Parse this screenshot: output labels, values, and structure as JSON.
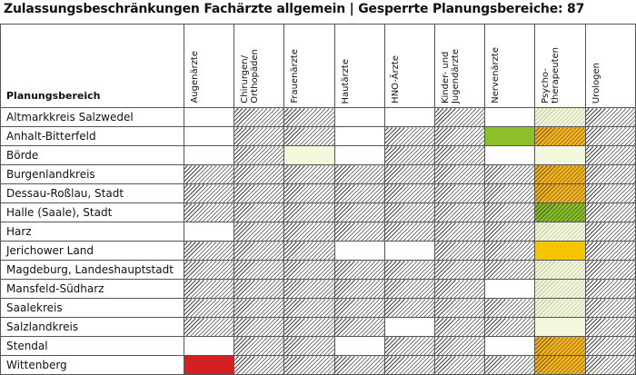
{
  "title": "Zulassungsbeschränkungen Fachärzte allgemein | Gesperrte Planungsbereiche: 87",
  "region_header": "Planungsbereich",
  "columns": [
    "Augenärzte",
    "Chirurgen/\nOrthopäden",
    "Frauenärzte",
    "Hautärzte",
    "HNO-Ärzte",
    "Kinder- und\nJugendärzte",
    "Nervenärzte",
    "Psycho-\ntherapeuten",
    "Urologen"
  ],
  "colors": {
    "hatch": "#444444",
    "green": "#8dbf2b",
    "orange": "#f5b51f",
    "yellow": "#f7c500",
    "red": "#d42020",
    "light": "#f3f7dc"
  },
  "rows": [
    {
      "region": "Altmarkkreis Salzwedel",
      "cells": [
        "",
        "hatch",
        "hatch",
        "",
        "",
        "hatch",
        "",
        "light hatch",
        "hatch"
      ]
    },
    {
      "region": "Anhalt-Bitterfeld",
      "cells": [
        "",
        "hatch",
        "hatch",
        "",
        "hatch",
        "hatch",
        "green",
        "orange hatch",
        "hatch"
      ]
    },
    {
      "region": "Börde",
      "cells": [
        "",
        "hatch",
        "light",
        "",
        "hatch",
        "hatch",
        "",
        "light",
        "hatch"
      ]
    },
    {
      "region": "Burgenlandkreis",
      "cells": [
        "hatch",
        "hatch",
        "hatch",
        "hatch",
        "hatch",
        "hatch",
        "hatch",
        "orange hatch",
        "hatch"
      ]
    },
    {
      "region": "Dessau-Roßlau, Stadt",
      "cells": [
        "hatch",
        "hatch",
        "hatch",
        "hatch",
        "hatch",
        "hatch",
        "hatch",
        "orange hatch",
        "hatch"
      ]
    },
    {
      "region": "Halle (Saale), Stadt",
      "cells": [
        "hatch",
        "hatch",
        "hatch",
        "hatch",
        "hatch",
        "hatch",
        "hatch",
        "green hatch",
        "hatch"
      ]
    },
    {
      "region": "Harz",
      "cells": [
        "",
        "hatch",
        "hatch",
        "hatch",
        "hatch",
        "hatch",
        "hatch",
        "light hatch",
        "hatch"
      ]
    },
    {
      "region": "Jerichower Land",
      "cells": [
        "hatch",
        "hatch",
        "hatch",
        "",
        "",
        "hatch",
        "hatch",
        "yellow",
        "hatch"
      ]
    },
    {
      "region": "Magdeburg, Landeshauptstadt",
      "cells": [
        "hatch",
        "hatch",
        "hatch",
        "hatch",
        "hatch",
        "hatch",
        "hatch",
        "light hatch",
        "hatch"
      ]
    },
    {
      "region": "Mansfeld-Südharz",
      "cells": [
        "hatch",
        "hatch",
        "hatch",
        "hatch",
        "hatch",
        "hatch",
        "",
        "light hatch",
        "hatch"
      ]
    },
    {
      "region": "Saalekreis",
      "cells": [
        "hatch",
        "hatch",
        "hatch",
        "hatch",
        "hatch",
        "hatch",
        "hatch",
        "light hatch",
        "hatch"
      ]
    },
    {
      "region": "Salzlandkreis",
      "cells": [
        "hatch",
        "hatch",
        "hatch",
        "hatch",
        "",
        "hatch",
        "hatch",
        "light",
        "hatch"
      ]
    },
    {
      "region": "Stendal",
      "cells": [
        "",
        "hatch",
        "hatch",
        "",
        "hatch",
        "hatch",
        "",
        "orange hatch",
        "hatch"
      ]
    },
    {
      "region": "Wittenberg",
      "cells": [
        "red",
        "hatch",
        "hatch",
        "hatch",
        "hatch",
        "hatch",
        "hatch",
        "orange hatch",
        "hatch"
      ]
    }
  ]
}
